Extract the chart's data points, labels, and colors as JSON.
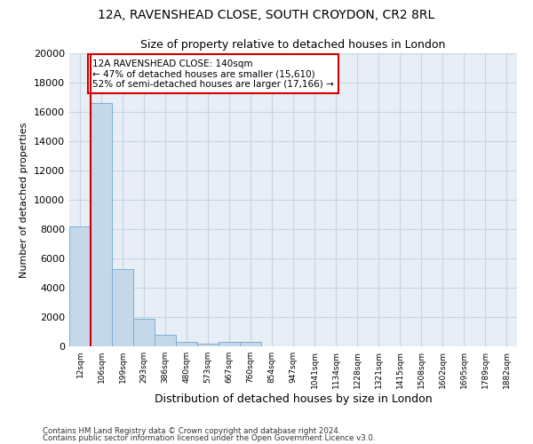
{
  "title1": "12A, RAVENSHEAD CLOSE, SOUTH CROYDON, CR2 8RL",
  "title2": "Size of property relative to detached houses in London",
  "xlabel": "Distribution of detached houses by size in London",
  "ylabel": "Number of detached properties",
  "categories": [
    "12sqm",
    "106sqm",
    "199sqm",
    "293sqm",
    "386sqm",
    "480sqm",
    "573sqm",
    "667sqm",
    "760sqm",
    "854sqm",
    "947sqm",
    "1041sqm",
    "1134sqm",
    "1228sqm",
    "1321sqm",
    "1415sqm",
    "1508sqm",
    "1602sqm",
    "1695sqm",
    "1789sqm",
    "1882sqm"
  ],
  "bar_heights": [
    8200,
    16600,
    5300,
    1850,
    800,
    300,
    200,
    300,
    300,
    0,
    0,
    0,
    0,
    0,
    0,
    0,
    0,
    0,
    0,
    0,
    0
  ],
  "bar_color": "#c5d8ea",
  "bar_edge_color": "#7bafd4",
  "bg_color": "#ffffff",
  "ax_bg_color": "#e8eef5",
  "grid_color": "#c8d4e0",
  "annotation_text": "12A RAVENSHEAD CLOSE: 140sqm\n← 47% of detached houses are smaller (15,610)\n52% of semi-detached houses are larger (17,166) →",
  "annotation_box_color": "#ffffff",
  "annotation_box_edge": "#cc0000",
  "property_line_color": "#cc0000",
  "property_line_x": 0.5,
  "ylim": [
    0,
    20000
  ],
  "yticks": [
    0,
    2000,
    4000,
    6000,
    8000,
    10000,
    12000,
    14000,
    16000,
    18000,
    20000
  ],
  "footer1": "Contains HM Land Registry data © Crown copyright and database right 2024.",
  "footer2": "Contains public sector information licensed under the Open Government Licence v3.0."
}
